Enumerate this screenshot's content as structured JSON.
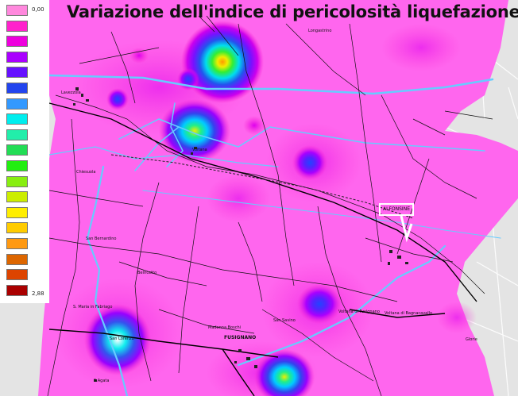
{
  "title": "Variazione dell'indice di pericolosità liquefazione",
  "legend": {
    "min_label": "0,00",
    "max_label": "2,88",
    "colors": [
      "#ff88dd",
      "#ff22cc",
      "#ee00dd",
      "#aa00ff",
      "#6611ff",
      "#2244ee",
      "#3399ff",
      "#00eeee",
      "#22eeaa",
      "#22dd55",
      "#22ee11",
      "#88ee11",
      "#ccee00",
      "#ffee00",
      "#ffcc00",
      "#ff9911",
      "#dd6600",
      "#dd4400",
      "#aa0000"
    ]
  },
  "places": {
    "longastrino": "Longastrino",
    "lavezzola": "Lavezzola",
    "voltana": "Voltana",
    "chiesuola": "Chiesuola",
    "san_bernardino": "San Bernardino",
    "belricetto": "Belricetto",
    "s_maria_fabriago": "S. Maria in Fabriago",
    "san_lorenzo": "San Lorenzo",
    "santagata": "S.Agata",
    "madonna_boschi": "Madonna Boschi",
    "fusignano": "FUSIGNANO",
    "san_savino": "San Savino",
    "voltana_fusignano": "Voltana di Fusignano",
    "voltana_bagnacavallo": "Voltana di Bagnacavallo",
    "glorie": "Glorie",
    "alfonsine": "ALFONSINE"
  },
  "colors": {
    "background_land": "#ff66ee",
    "outside_area": "#e4e4e4",
    "rivers": "#66ccff",
    "roads": "#000000"
  }
}
